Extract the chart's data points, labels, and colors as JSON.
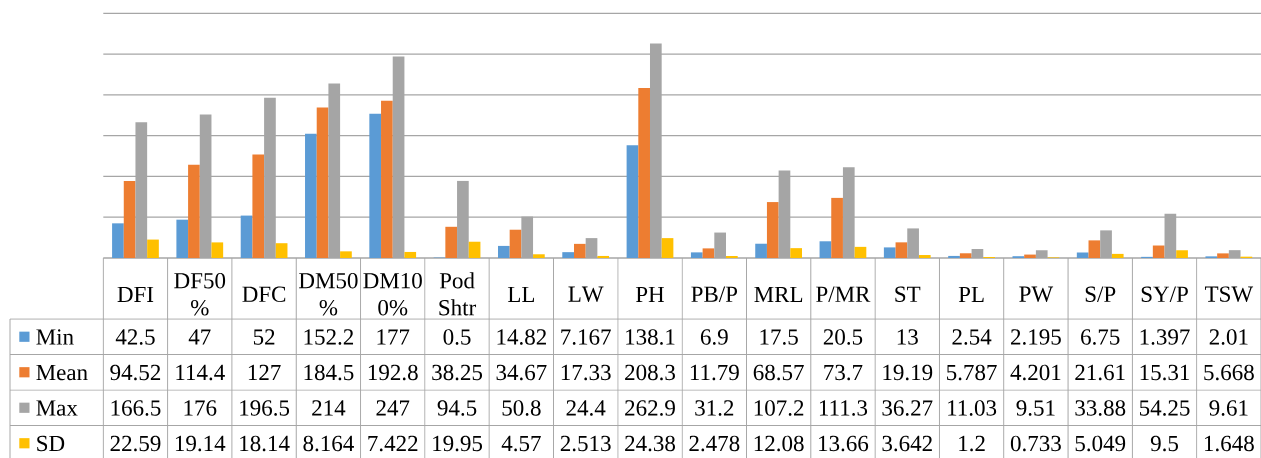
{
  "chart_data": {
    "type": "bar",
    "categories": [
      "DFI",
      "DF50%",
      "DFC",
      "DM50%",
      "DM100%",
      "Pod Shtr",
      "LL",
      "LW",
      "PH",
      "PB/P",
      "MRL",
      "P/MR",
      "ST",
      "PL",
      "PW",
      "S/P",
      "SY/P",
      "TSW"
    ],
    "series": [
      {
        "name": "Min",
        "color": "#5b9bd5",
        "values": [
          42.5,
          47,
          52,
          152.2,
          177,
          0.5,
          14.82,
          7.167,
          138.1,
          6.9,
          17.5,
          20.5,
          13,
          2.54,
          2.195,
          6.75,
          1.397,
          2.01
        ]
      },
      {
        "name": "Mean",
        "color": "#ed7d31",
        "values": [
          94.52,
          114.4,
          127,
          184.5,
          192.8,
          38.25,
          34.67,
          17.33,
          208.3,
          11.79,
          68.57,
          73.7,
          19.19,
          5.787,
          4.201,
          21.61,
          15.31,
          5.668
        ]
      },
      {
        "name": "Max",
        "color": "#a5a5a5",
        "values": [
          166.5,
          176,
          196.5,
          214,
          247,
          94.5,
          50.8,
          24.4,
          262.9,
          31.2,
          107.2,
          111.3,
          36.27,
          11.03,
          9.51,
          33.88,
          54.25,
          9.61
        ]
      },
      {
        "name": "SD",
        "color": "#ffc000",
        "values": [
          22.59,
          19.14,
          18.14,
          8.164,
          7.422,
          19.95,
          4.57,
          2.513,
          24.38,
          2.478,
          12.08,
          13.66,
          3.642,
          1.2,
          0.733,
          5.049,
          9.5,
          1.648
        ]
      }
    ],
    "ylim": [
      0,
      300
    ],
    "yticks": [
      {
        "value": 0,
        "label": null
      },
      {
        "value": 50,
        "label": null
      },
      {
        "value": 100,
        "label": null
      },
      {
        "value": 150,
        "label": null
      },
      {
        "value": 200,
        "label": null
      },
      {
        "value": 250,
        "label": null
      },
      {
        "value": 300,
        "label": null
      }
    ],
    "grid": "y",
    "tick_labels": "x",
    "legend": "bottom left",
    "data_labels": true
  }
}
